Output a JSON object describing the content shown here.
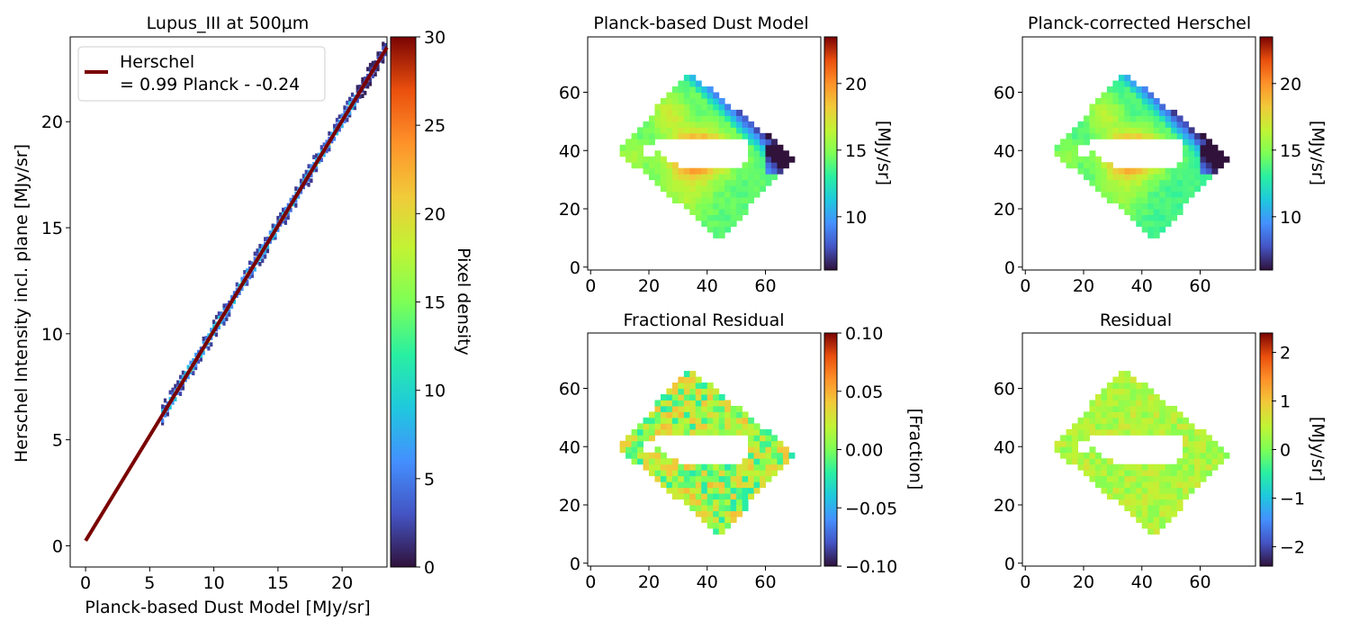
{
  "chart_data": [
    {
      "type": "heatmap",
      "kind": "2d-density-scatter",
      "title": "Lupus_III at 500µm",
      "xlabel": "Planck-based Dust Model [MJy/sr]",
      "ylabel": "Herschel Intensity incl. plane [MJy/sr]",
      "xlim": [
        -1.2,
        23.5
      ],
      "ylim": [
        -1,
        24
      ],
      "xticks": [
        "0",
        "5",
        "10",
        "15",
        "20"
      ],
      "yticks": [
        "0",
        "5",
        "10",
        "15",
        "20"
      ],
      "density_range": [
        6,
        23.5
      ],
      "fit": {
        "slope": 0.99,
        "intercept": 0.24,
        "x_range": [
          0,
          23.5
        ],
        "color": "#7a0000"
      },
      "legend": {
        "position": "upper-left",
        "line1": "Herschel",
        "line2": "= 0.99 Planck - -0.24"
      },
      "colorbar": {
        "label": "Pixel density",
        "range": [
          0,
          30
        ],
        "ticks": [
          "0",
          "5",
          "10",
          "15",
          "20",
          "25",
          "30"
        ],
        "colormap": "turbo"
      }
    },
    {
      "type": "heatmap",
      "title": "Planck-based Dust Model",
      "xlim": [
        -1,
        79
      ],
      "ylim": [
        -1,
        79
      ],
      "xticks": [
        "0",
        "20",
        "40",
        "60"
      ],
      "yticks": [
        "0",
        "20",
        "40",
        "60"
      ],
      "region": {
        "shape": "diamond",
        "corners": [
          [
            9,
            40
          ],
          [
            34,
            67
          ],
          [
            70,
            38
          ],
          [
            46,
            11
          ]
        ]
      },
      "colorbar": {
        "label": "[MJy/sr]",
        "range": [
          6,
          23.5
        ],
        "ticks": [
          "10",
          "15",
          "20"
        ],
        "colormap": "turbo"
      }
    },
    {
      "type": "heatmap",
      "title": "Planck-corrected Herschel",
      "xlim": [
        -1,
        79
      ],
      "ylim": [
        -1,
        79
      ],
      "xticks": [
        "0",
        "20",
        "40",
        "60"
      ],
      "yticks": [
        "0",
        "20",
        "40",
        "60"
      ],
      "region": {
        "shape": "diamond",
        "corners": [
          [
            9,
            40
          ],
          [
            34,
            67
          ],
          [
            70,
            38
          ],
          [
            46,
            11
          ]
        ]
      },
      "colorbar": {
        "label": "[MJy/sr]",
        "range": [
          6,
          23.5
        ],
        "ticks": [
          "10",
          "15",
          "20"
        ],
        "colormap": "turbo"
      }
    },
    {
      "type": "heatmap",
      "title": "Fractional Residual",
      "xlim": [
        -1,
        79
      ],
      "ylim": [
        -1,
        79
      ],
      "xticks": [
        "0",
        "20",
        "40",
        "60"
      ],
      "yticks": [
        "0",
        "20",
        "40",
        "60"
      ],
      "region": {
        "shape": "diamond",
        "corners": [
          [
            9,
            40
          ],
          [
            34,
            67
          ],
          [
            70,
            38
          ],
          [
            46,
            11
          ]
        ]
      },
      "colorbar": {
        "label": "[Fraction]",
        "range": [
          -0.1,
          0.1
        ],
        "ticks": [
          "0.10",
          "0.05",
          "0.00",
          "−0.05",
          "−0.10"
        ],
        "colormap": "turbo"
      }
    },
    {
      "type": "heatmap",
      "title": "Residual",
      "xlim": [
        -1,
        79
      ],
      "ylim": [
        -1,
        79
      ],
      "xticks": [
        "0",
        "20",
        "40",
        "60"
      ],
      "yticks": [
        "0",
        "20",
        "40",
        "60"
      ],
      "region": {
        "shape": "diamond",
        "corners": [
          [
            9,
            40
          ],
          [
            34,
            67
          ],
          [
            70,
            38
          ],
          [
            46,
            11
          ]
        ]
      },
      "colorbar": {
        "label": "[MJy/sr]",
        "range": [
          -2.4,
          2.4
        ],
        "ticks": [
          "2",
          "1",
          "0",
          "−1",
          "−2"
        ],
        "colormap": "turbo"
      }
    }
  ]
}
